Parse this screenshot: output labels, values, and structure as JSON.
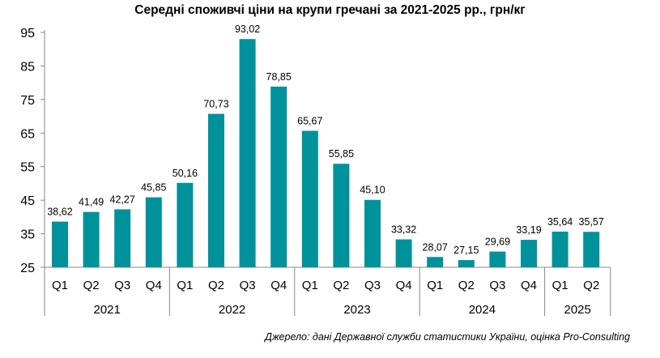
{
  "chart_data": {
    "type": "bar",
    "title": "Середні споживчі ціни на крупи гречані за 2021-2025 рр., грн/кг",
    "source": "Джерело: дані Державної служби статистики України, оцінка Pro-Consulting",
    "xlabel": "",
    "ylabel": "",
    "ylim": [
      25,
      95
    ],
    "yticks": [
      25,
      35,
      45,
      55,
      65,
      75,
      85,
      95
    ],
    "groups": [
      {
        "year": "2021",
        "quarters": [
          "Q1",
          "Q2",
          "Q3",
          "Q4"
        ]
      },
      {
        "year": "2022",
        "quarters": [
          "Q1",
          "Q2",
          "Q3",
          "Q4"
        ]
      },
      {
        "year": "2023",
        "quarters": [
          "Q1",
          "Q2",
          "Q3",
          "Q4"
        ]
      },
      {
        "year": "2024",
        "quarters": [
          "Q1",
          "Q2",
          "Q3",
          "Q4"
        ]
      },
      {
        "year": "2025",
        "quarters": [
          "Q1",
          "Q2"
        ]
      }
    ],
    "values": [
      38.62,
      41.49,
      42.27,
      45.85,
      50.16,
      70.73,
      93.02,
      78.85,
      65.67,
      55.85,
      45.1,
      33.32,
      28.07,
      27.15,
      29.69,
      33.19,
      35.64,
      35.57
    ],
    "labels": [
      "38,62",
      "41,49",
      "42,27",
      "45,85",
      "50,16",
      "70,73",
      "93,02",
      "78,85",
      "65,67",
      "55,85",
      "45,10",
      "33,32",
      "28,07",
      "27,15",
      "29,69",
      "33,19",
      "35,64",
      "35,57"
    ],
    "bar_color": "#00929A",
    "grid": false,
    "legend": "none"
  }
}
